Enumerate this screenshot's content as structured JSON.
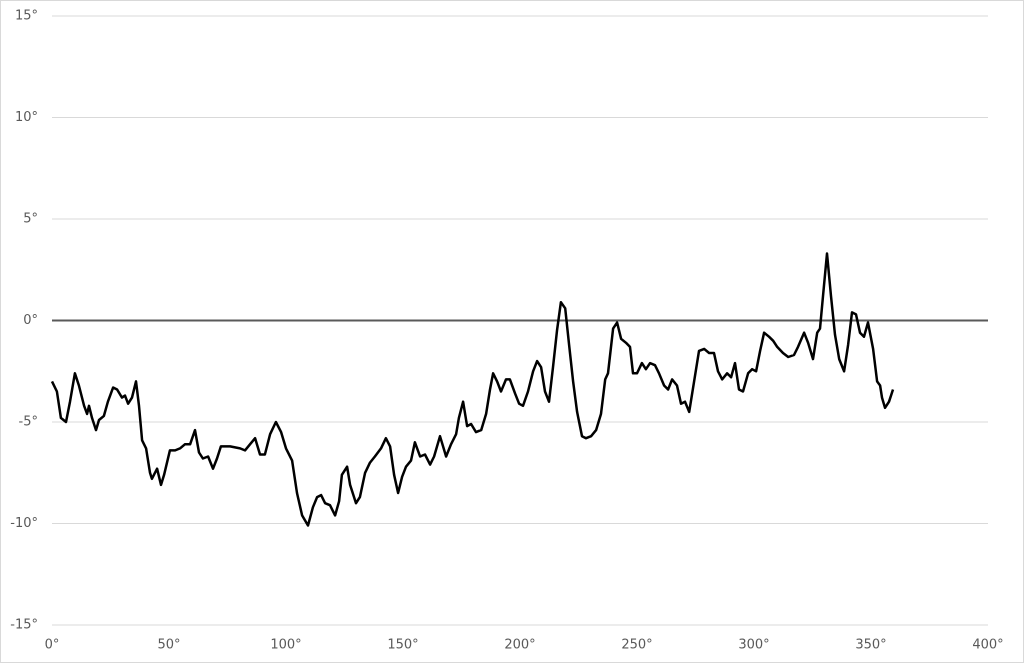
{
  "chart_data": {
    "type": "line",
    "x": [
      0,
      2.1,
      3.8,
      6,
      7.7,
      9.8,
      11.5,
      13.7,
      15,
      15.8,
      17.1,
      18.8,
      20.1,
      22.2,
      23.9,
      26.1,
      27.8,
      29.9,
      31.2,
      32.5,
      34.2,
      35.9,
      37.2,
      38.5,
      40.2,
      41.9,
      42.7,
      44.9,
      46.6,
      47.9,
      50.4,
      52.6,
      54.7,
      56.8,
      59,
      61.1,
      62.8,
      64.5,
      66.7,
      68.8,
      70.5,
      72.2,
      76.1,
      80.4,
      82.5,
      84.6,
      86.8,
      88.9,
      91,
      93.2,
      95.7,
      97.9,
      100,
      102.6,
      104.7,
      106.9,
      109.4,
      111.5,
      113.3,
      115,
      116.7,
      118.8,
      121,
      122.7,
      123.9,
      126.1,
      127.4,
      129.9,
      131.6,
      133.8,
      135.9,
      138,
      140.6,
      142.7,
      144.5,
      146.2,
      147.9,
      149.6,
      151.3,
      153.4,
      155.1,
      157.3,
      159.4,
      161.6,
      163.3,
      165.8,
      168.4,
      170.5,
      172.7,
      173.9,
      175.7,
      177.4,
      179.1,
      181.2,
      183.4,
      185.5,
      187.2,
      188.5,
      190.2,
      191.9,
      194,
      195.7,
      197.9,
      199.6,
      201.3,
      203.4,
      205.6,
      207.3,
      209,
      210.7,
      212.4,
      214.1,
      215.8,
      217.5,
      219.3,
      221,
      222.7,
      224.4,
      226.5,
      228.2,
      230.4,
      232.5,
      234.6,
      236.4,
      237.6,
      239.8,
      241.5,
      243.2,
      245.3,
      247,
      248.3,
      250,
      252.1,
      253.8,
      255.6,
      257.7,
      259.4,
      261.6,
      263.3,
      265,
      267.1,
      268.8,
      270.5,
      272.3,
      274.4,
      276.5,
      278.7,
      280.8,
      282.9,
      284.6,
      286.4,
      288.5,
      290.2,
      291.9,
      293.6,
      295.3,
      297.5,
      299.2,
      300.9,
      302.6,
      304.3,
      306.4,
      308.2,
      309.9,
      312.4,
      314.6,
      317.1,
      318.8,
      321.4,
      323.1,
      325.2,
      327,
      328.2,
      329.5,
      331.2,
      332.9,
      334.6,
      336.4,
      338.5,
      340.2,
      341.9,
      343.6,
      345.3,
      347,
      348.7,
      350.9,
      352.6,
      353.9,
      354.7,
      356,
      357.7,
      359.4
    ],
    "series": [
      {
        "color": "#000000",
        "values": [
          -3.0,
          -3.5,
          -4.8,
          -5.0,
          -4.0,
          -2.6,
          -3.2,
          -4.2,
          -4.6,
          -4.2,
          -4.8,
          -5.4,
          -4.9,
          -4.7,
          -4.0,
          -3.3,
          -3.4,
          -3.8,
          -3.7,
          -4.1,
          -3.8,
          -3.0,
          -4.2,
          -5.9,
          -6.3,
          -7.5,
          -7.8,
          -7.3,
          -8.1,
          -7.6,
          -6.4,
          -6.4,
          -6.3,
          -6.1,
          -6.1,
          -5.4,
          -6.5,
          -6.8,
          -6.7,
          -7.3,
          -6.8,
          -6.2,
          -6.2,
          -6.3,
          -6.4,
          -6.1,
          -5.8,
          -6.6,
          -6.6,
          -5.6,
          -5.0,
          -5.5,
          -6.3,
          -6.9,
          -8.5,
          -9.6,
          -10.1,
          -9.2,
          -8.7,
          -8.6,
          -9.0,
          -9.1,
          -9.6,
          -8.9,
          -7.6,
          -7.2,
          -8.1,
          -9.0,
          -8.7,
          -7.5,
          -7.0,
          -6.7,
          -6.3,
          -5.8,
          -6.2,
          -7.6,
          -8.5,
          -7.7,
          -7.2,
          -6.9,
          -6.0,
          -6.7,
          -6.6,
          -7.1,
          -6.7,
          -5.7,
          -6.7,
          -6.1,
          -5.6,
          -4.8,
          -4.0,
          -5.2,
          -5.1,
          -5.5,
          -5.4,
          -4.6,
          -3.4,
          -2.6,
          -3.0,
          -3.5,
          -2.9,
          -2.9,
          -3.6,
          -4.1,
          -4.2,
          -3.5,
          -2.5,
          -2.0,
          -2.3,
          -3.5,
          -4.0,
          -2.3,
          -0.5,
          0.9,
          0.6,
          -1.2,
          -3.0,
          -4.5,
          -5.7,
          -5.8,
          -5.7,
          -5.4,
          -4.6,
          -2.9,
          -2.6,
          -0.4,
          -0.1,
          -0.9,
          -1.1,
          -1.3,
          -2.6,
          -2.6,
          -2.1,
          -2.4,
          -2.1,
          -2.2,
          -2.6,
          -3.2,
          -3.4,
          -2.9,
          -3.2,
          -4.1,
          -4.0,
          -4.5,
          -3.0,
          -1.5,
          -1.4,
          -1.6,
          -1.6,
          -2.5,
          -2.9,
          -2.6,
          -2.8,
          -2.1,
          -3.4,
          -3.5,
          -2.6,
          -2.4,
          -2.5,
          -1.5,
          -0.6,
          -0.8,
          -1.0,
          -1.3,
          -1.6,
          -1.8,
          -1.7,
          -1.3,
          -0.6,
          -1.1,
          -1.9,
          -0.6,
          -0.4,
          1.2,
          3.3,
          1.2,
          -0.7,
          -1.9,
          -2.5,
          -1.2,
          0.4,
          0.3,
          -0.6,
          -0.8,
          -0.1,
          -1.4,
          -3.0,
          -3.2,
          -3.8,
          -4.3,
          -4.0,
          -3.4
        ]
      }
    ],
    "xlim": [
      0,
      400
    ],
    "xticks": [
      {
        "value": 0,
        "label": "0°"
      },
      {
        "value": 50,
        "label": "50°"
      },
      {
        "value": 100,
        "label": "100°"
      },
      {
        "value": 150,
        "label": "150°"
      },
      {
        "value": 200,
        "label": "200°"
      },
      {
        "value": 250,
        "label": "250°"
      },
      {
        "value": 300,
        "label": "300°"
      },
      {
        "value": 350,
        "label": "350°"
      },
      {
        "value": 400,
        "label": "400°"
      }
    ],
    "ylim": [
      -15,
      15
    ],
    "yticks": [
      {
        "value": 15,
        "label": "15°"
      },
      {
        "value": 10,
        "label": "10°"
      },
      {
        "value": 5,
        "label": "5°"
      },
      {
        "value": 0,
        "label": "0°"
      },
      {
        "value": -5,
        "label": "-5°"
      },
      {
        "value": -10,
        "label": "-10°"
      },
      {
        "value": -15,
        "label": "-15°"
      }
    ],
    "grid": true
  }
}
